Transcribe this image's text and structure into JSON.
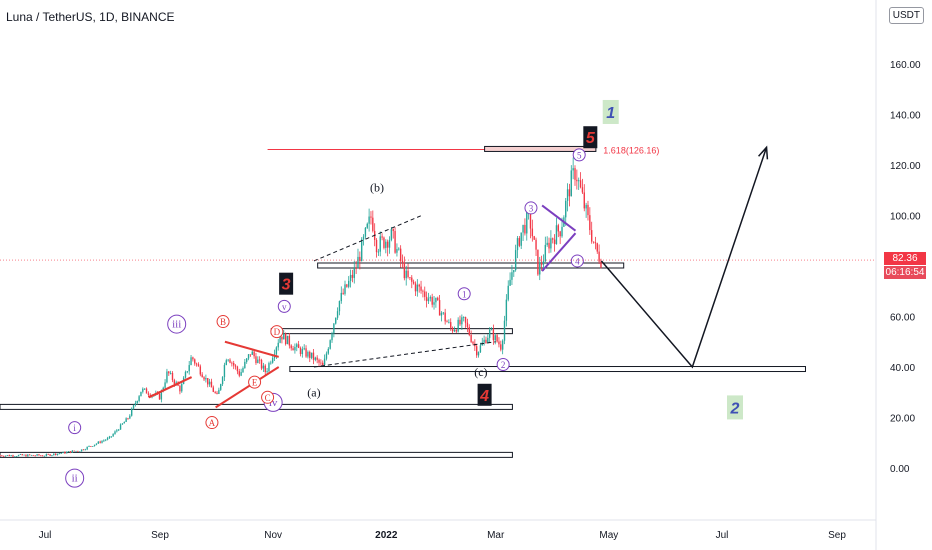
{
  "header": {
    "title": "Luna / TetherUS, 1D, BINANCE",
    "currency": "USDT",
    "last_price": "82.36",
    "countdown": "06:16:54"
  },
  "colors": {
    "up": "#26a69a",
    "down": "#f23645",
    "wave_purple": "#7b3fbf",
    "wave_red": "#e53935",
    "box_fill": "#f5d0d0",
    "green_label_bg": "#cde8c8"
  },
  "chart_data": {
    "type": "candlestick",
    "title": "Luna / TetherUS, 1D, BINANCE",
    "y_ticks": [
      "160.00",
      "140.00",
      "120.00",
      "100.00",
      "60.00",
      "40.00",
      "20.00",
      "0.00"
    ],
    "x_ticks": [
      "Jul",
      "Sep",
      "Nov",
      "2022",
      "Mar",
      "May",
      "Jul",
      "Sep"
    ],
    "ylim": [
      -20,
      180
    ],
    "grid": false,
    "last_price": 82.36,
    "price_path": [
      [
        "2021-06-15",
        5
      ],
      [
        "2021-07-01",
        5
      ],
      [
        "2021-07-20",
        7
      ],
      [
        "2021-08-05",
        12
      ],
      [
        "2021-08-15",
        20
      ],
      [
        "2021-08-22",
        31
      ],
      [
        "2021-09-01",
        28
      ],
      [
        "2021-09-05",
        38
      ],
      [
        "2021-09-12",
        31
      ],
      [
        "2021-09-18",
        44
      ],
      [
        "2021-09-25",
        36
      ],
      [
        "2021-10-02",
        28
      ],
      [
        "2021-10-07",
        45
      ],
      [
        "2021-10-14",
        37
      ],
      [
        "2021-10-20",
        46
      ],
      [
        "2021-10-28",
        38
      ],
      [
        "2021-11-05",
        53
      ],
      [
        "2021-11-12",
        48
      ],
      [
        "2021-11-22",
        44
      ],
      [
        "2021-11-28",
        40
      ],
      [
        "2021-12-06",
        65
      ],
      [
        "2021-12-15",
        78
      ],
      [
        "2021-12-24",
        100
      ],
      [
        "2021-12-27",
        88
      ],
      [
        "2022-01-04",
        92
      ],
      [
        "2022-01-12",
        75
      ],
      [
        "2022-01-20",
        70
      ],
      [
        "2022-01-28",
        65
      ],
      [
        "2022-02-05",
        55
      ],
      [
        "2022-02-12",
        58
      ],
      [
        "2022-02-19",
        46
      ],
      [
        "2022-02-26",
        54
      ],
      [
        "2022-03-04",
        48
      ],
      [
        "2022-03-08",
        72
      ],
      [
        "2022-03-14",
        92
      ],
      [
        "2022-03-19",
        100
      ],
      [
        "2022-03-24",
        78
      ],
      [
        "2022-03-30",
        90
      ],
      [
        "2022-04-05",
        95
      ],
      [
        "2022-04-10",
        112
      ],
      [
        "2022-04-13",
        118
      ],
      [
        "2022-04-18",
        103
      ],
      [
        "2022-04-24",
        86
      ],
      [
        "2022-04-27",
        82.36
      ]
    ],
    "zones": [
      {
        "from": "2021-06-01",
        "to": "2022-03-10",
        "y": 5
      },
      {
        "from": "2021-06-01",
        "to": "2022-03-10",
        "y": 24
      },
      {
        "from": "2021-11-10",
        "to": "2022-08-15",
        "y": 39
      },
      {
        "from": "2021-10-31",
        "to": "2022-03-10",
        "y": 54
      },
      {
        "from": "2021-11-25",
        "to": "2022-05-09",
        "y": 80
      }
    ],
    "fib_label": "1.618(126.16)",
    "fib_level": 126.16,
    "projection": [
      [
        "2022-04-27",
        82
      ],
      [
        "2022-06-15",
        40
      ],
      [
        "2022-07-25",
        127
      ]
    ],
    "labels": [
      {
        "text": "i",
        "style": "circle-purple",
        "date": "2021-07-17",
        "y": 16
      },
      {
        "text": "ii",
        "style": "circle-purple",
        "date": "2021-07-17",
        "y": -4
      },
      {
        "text": "iii",
        "style": "circle-purple",
        "date": "2021-09-10",
        "y": 57
      },
      {
        "text": "iv",
        "style": "circle-purple",
        "date": "2021-11-01",
        "y": 26
      },
      {
        "text": "v",
        "style": "circle-purple",
        "date": "2021-11-07",
        "y": 64
      },
      {
        "text": "A",
        "style": "circle-red",
        "date": "2021-09-29",
        "y": 18
      },
      {
        "text": "B",
        "style": "circle-red",
        "date": "2021-10-05",
        "y": 58
      },
      {
        "text": "C",
        "style": "circle-red",
        "date": "2021-10-29",
        "y": 28
      },
      {
        "text": "D",
        "style": "circle-red",
        "date": "2021-11-03",
        "y": 54
      },
      {
        "text": "E",
        "style": "circle-red",
        "date": "2021-10-22",
        "y": 34
      },
      {
        "text": "(a)",
        "style": "plain",
        "date": "2021-11-23",
        "y": 30
      },
      {
        "text": "(b)",
        "style": "plain",
        "date": "2021-12-27",
        "y": 111
      },
      {
        "text": "(c)",
        "style": "plain",
        "date": "2022-02-21",
        "y": 38
      },
      {
        "text": "1",
        "style": "circle-purple",
        "date": "2022-02-12",
        "y": 69
      },
      {
        "text": "2",
        "style": "circle-purple",
        "date": "2022-03-05",
        "y": 41
      },
      {
        "text": "3",
        "style": "circle-purple",
        "date": "2022-03-20",
        "y": 103
      },
      {
        "text": "4",
        "style": "circle-purple",
        "date": "2022-04-14",
        "y": 82
      },
      {
        "text": "5",
        "style": "circle-purple",
        "date": "2022-04-15",
        "y": 124
      },
      {
        "text": "3",
        "style": "box-black",
        "date": "2021-11-08",
        "y": 73
      },
      {
        "text": "4",
        "style": "box-black",
        "date": "2022-02-23",
        "y": 29
      },
      {
        "text": "5",
        "style": "box-black",
        "date": "2022-04-21",
        "y": 131
      },
      {
        "text": "1",
        "style": "box-green",
        "date": "2022-05-02",
        "y": 141
      },
      {
        "text": "2",
        "style": "box-green",
        "date": "2022-07-08",
        "y": 24
      }
    ],
    "triangles": [
      {
        "color": "red",
        "lines": [
          [
            [
              "2021-08-26",
              28
            ],
            [
              "2021-09-18",
              36
            ]
          ],
          [
            [
              "2021-08-26",
              28
            ],
            [
              "2021-09-18",
              36
            ]
          ]
        ]
      },
      {
        "color": "red",
        "lines": [
          [
            [
              "2021-10-01",
              24
            ],
            [
              "2021-11-04",
              40
            ]
          ],
          [
            [
              "2021-10-06",
              50
            ],
            [
              "2021-11-04",
              44
            ]
          ]
        ]
      },
      {
        "color": "purple",
        "lines": [
          [
            [
              "2022-03-26",
              104
            ],
            [
              "2022-04-13",
              94
            ]
          ],
          [
            [
              "2022-03-26",
              78
            ],
            [
              "2022-04-13",
              93
            ]
          ]
        ]
      }
    ],
    "dashed_lines": [
      [
        [
          "2021-11-23",
          82
        ],
        [
          "2022-01-20",
          100
        ]
      ],
      [
        [
          "2021-11-23",
          40
        ],
        [
          "2022-03-01",
          50
        ]
      ]
    ]
  }
}
